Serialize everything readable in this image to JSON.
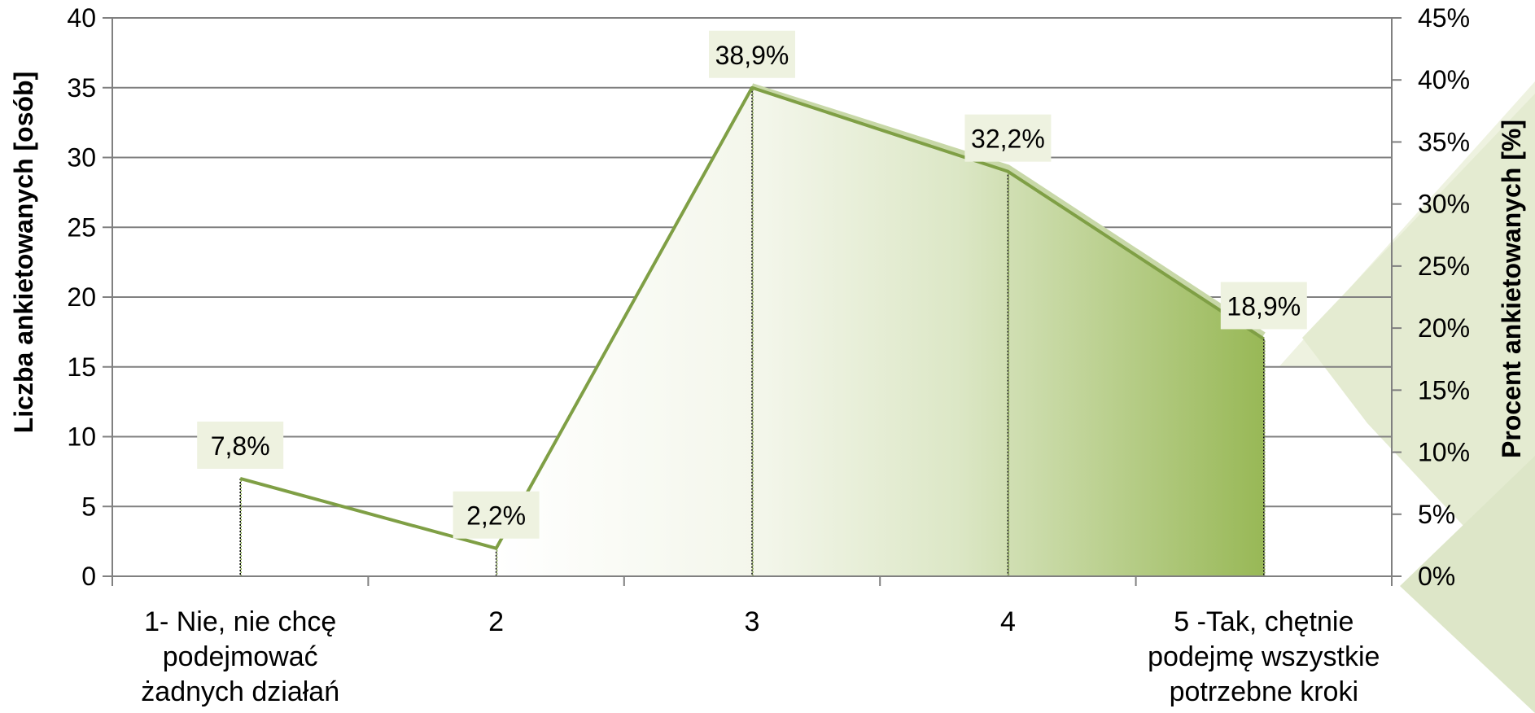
{
  "chart_data": {
    "type": "area",
    "categories": [
      "1- Nie, nie chcę podejmować żadnych działań",
      "2",
      "3",
      "4",
      "5 -Tak, chętnie podejmę wszystkie potrzebne kroki"
    ],
    "category_lines": [
      [
        "1- Nie, nie chcę",
        "podejmować",
        "żadnych działań"
      ],
      [
        "2"
      ],
      [
        "3"
      ],
      [
        "4"
      ],
      [
        "5 -Tak, chętnie",
        "podejmę wszystkie",
        "potrzebne kroki"
      ]
    ],
    "series": [
      {
        "name": "",
        "values": [
          7,
          2,
          35,
          29,
          17
        ]
      }
    ],
    "data_labels": [
      "7,8%",
      "2,2%",
      "38,9%",
      "32,2%",
      "18,9%"
    ],
    "percent_values": [
      7.8,
      2.2,
      38.9,
      32.2,
      18.9
    ],
    "ylabel": "Liczba ankietowanych [osób]",
    "y2label": "Procent ankietowanych [%]",
    "ylim": [
      0,
      40
    ],
    "yticks": [
      "0",
      "5",
      "10",
      "15",
      "20",
      "25",
      "30",
      "35",
      "40"
    ],
    "y2lim": [
      0,
      45
    ],
    "y2ticks": [
      "0%",
      "5%",
      "10%",
      "15%",
      "20%",
      "25%",
      "30%",
      "35%",
      "40%",
      "45%"
    ],
    "grid": true,
    "colors": {
      "line": "#7f9f45",
      "fill_light": "#ffffff",
      "fill_dark": "#98b856",
      "label_bg": "#eef2e0",
      "grid": "#808080",
      "decor1": "#e6ecd3",
      "decor2": "#d5e0bd"
    }
  }
}
